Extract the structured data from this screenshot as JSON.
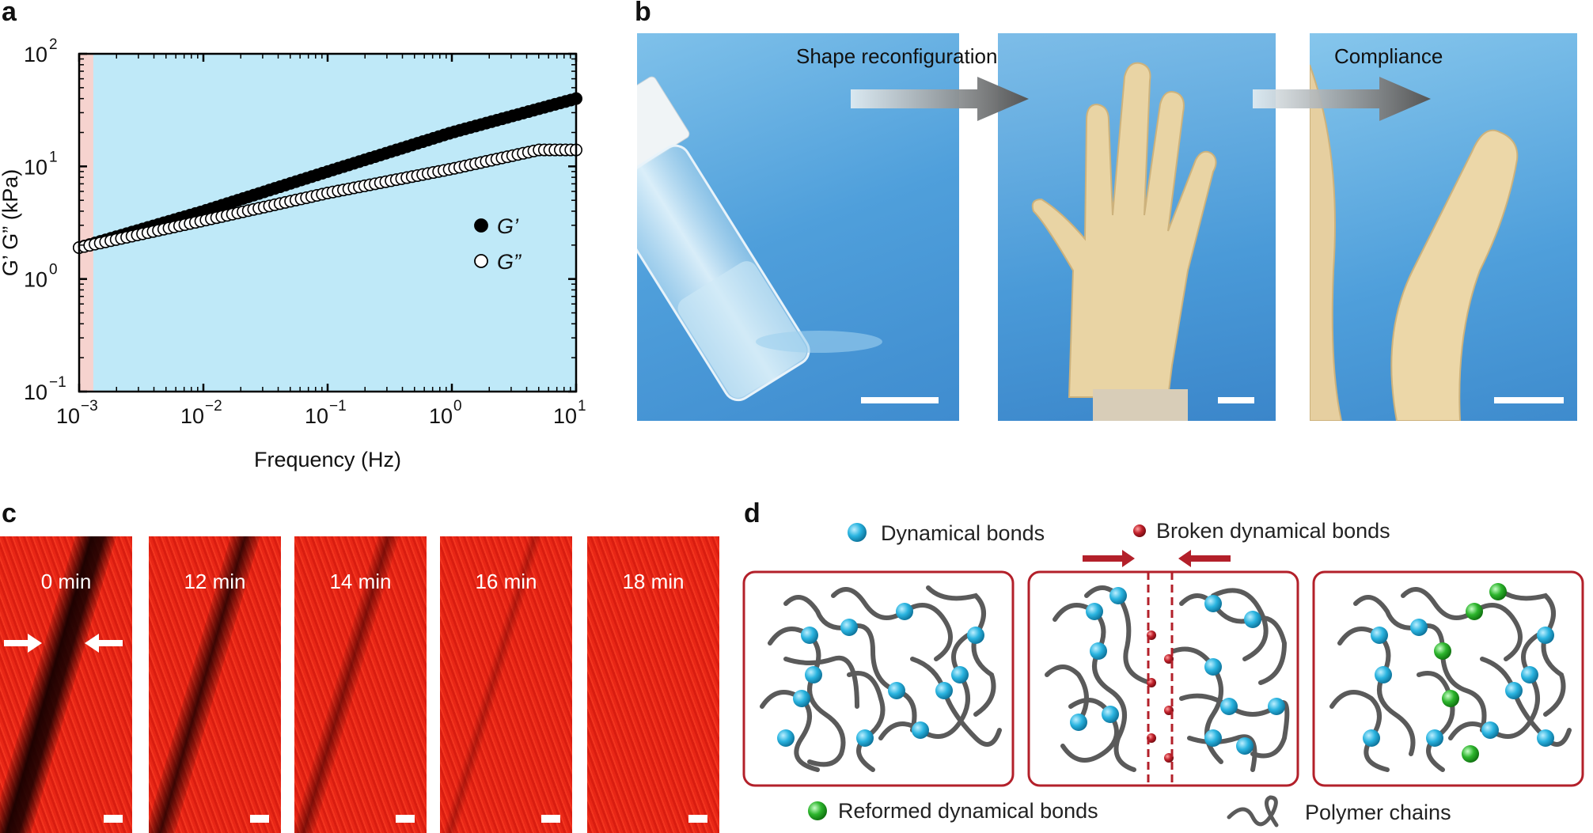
{
  "panels": {
    "a": {
      "label": "a"
    },
    "b": {
      "label": "b",
      "step1": "Shape reconfiguration",
      "step2": "Compliance"
    },
    "c": {
      "label": "c",
      "times": [
        "0 min",
        "12 min",
        "14 min",
        "16 min",
        "18 min"
      ]
    },
    "d": {
      "label": "d",
      "legend_dynamical": "Dynamical bonds",
      "legend_broken": "Broken dynamical bonds",
      "legend_reformed": "Reformed dynamical bonds",
      "legend_polymer": "Polymer chains"
    }
  },
  "colors": {
    "storage": "#000000",
    "loss": "#ffffff",
    "plot_bg": "#bfe9f8",
    "shade": "#f6d3cf",
    "bond": "#2ab4e0",
    "broken": "#c0202a",
    "reformed": "#2db52d",
    "frame": "#b3202a",
    "chain": "#5a5a5a"
  },
  "chart_data": {
    "type": "scatter",
    "xlabel": "Frequency (Hz)",
    "ylabel": "G’ G” (kPa)",
    "xscale": "log",
    "yscale": "log",
    "xlim": [
      0.001,
      10
    ],
    "ylim": [
      0.1,
      100
    ],
    "xticks": [
      "10",
      "10",
      "10",
      "10",
      "10"
    ],
    "xtick_exp": [
      "−3",
      "−2",
      "−1",
      "0",
      "1"
    ],
    "yticks": [
      "10",
      "10",
      "10",
      "10"
    ],
    "ytick_exp": [
      "−1",
      "0",
      "1",
      "2"
    ],
    "shaded_range": [
      0.001,
      0.0013
    ],
    "series": [
      {
        "name": "G’",
        "marker": "filled",
        "x_range": [
          0.001,
          10
        ],
        "values_at": {
          "0.001": 1.9,
          "0.01": 4.0,
          "0.1": 9.0,
          "1": 20,
          "10": 40
        }
      },
      {
        "name": "G”",
        "marker": "open",
        "x_range": [
          0.001,
          10
        ],
        "values_at": {
          "0.001": 1.9,
          "0.01": 3.3,
          "0.1": 5.8,
          "1": 9.5,
          "5": 14,
          "10": 14
        }
      }
    ],
    "legend_position": "right"
  }
}
